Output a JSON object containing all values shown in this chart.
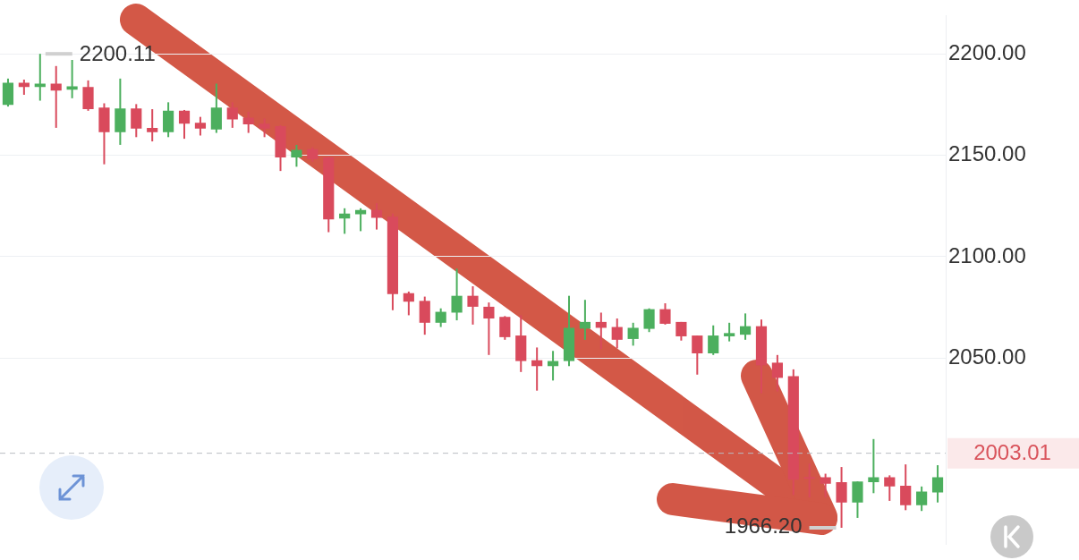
{
  "chart_data": {
    "type": "candlestick",
    "categories": [
      null,
      null,
      null,
      null,
      null,
      null,
      null,
      null,
      null,
      null,
      null,
      null,
      null,
      null,
      null,
      null,
      null,
      null,
      null,
      null,
      null,
      null,
      null,
      null,
      null,
      null,
      null,
      null,
      null,
      null,
      null,
      null,
      null,
      null,
      null,
      null,
      null,
      null,
      null,
      null,
      null,
      null,
      null,
      null,
      null,
      null,
      null,
      null,
      null,
      null,
      null,
      null,
      null,
      null,
      null,
      null,
      null,
      null,
      null
    ],
    "ohlc": [
      [
        2174.9,
        2187.9,
        2174.1,
        2185.8
      ],
      [
        2185.8,
        2187.4,
        2179.9,
        2183.7
      ],
      [
        2183.7,
        2200.11,
        2177.0,
        2185.4
      ],
      [
        2185.4,
        2194.1,
        2163.6,
        2182.0
      ],
      [
        2182.4,
        2197.1,
        2178.2,
        2184.1
      ],
      [
        2183.7,
        2187.0,
        2172.0,
        2172.8
      ],
      [
        2173.6,
        2175.7,
        2145.6,
        2161.5
      ],
      [
        2161.5,
        2187.9,
        2155.2,
        2173.2
      ],
      [
        2173.2,
        2175.3,
        2159.0,
        2163.2
      ],
      [
        2163.6,
        2172.8,
        2156.9,
        2161.5
      ],
      [
        2161.5,
        2176.2,
        2159.0,
        2172.0
      ],
      [
        2172.0,
        2172.4,
        2158.2,
        2165.7
      ],
      [
        2166.1,
        2169.0,
        2159.8,
        2163.2
      ],
      [
        2162.8,
        2185.4,
        2161.1,
        2173.6
      ],
      [
        2173.6,
        2176.2,
        2163.6,
        2167.8
      ],
      [
        2168.6,
        2171.5,
        2161.1,
        2165.3
      ],
      [
        2165.7,
        2168.2,
        2159.0,
        2163.2
      ],
      [
        2164.4,
        2164.9,
        2142.3,
        2149.0
      ],
      [
        2149.0,
        2155.2,
        2144.4,
        2152.7
      ],
      [
        2153.1,
        2154.0,
        2146.9,
        2148.1
      ],
      [
        2149.0,
        2149.4,
        2112.1,
        2118.4
      ],
      [
        2118.8,
        2123.9,
        2111.3,
        2121.3
      ],
      [
        2120.9,
        2123.9,
        2112.6,
        2123.0
      ],
      [
        2123.0,
        2126.4,
        2113.4,
        2119.2
      ],
      [
        2119.7,
        2121.3,
        2073.6,
        2081.6
      ],
      [
        2082.0,
        2082.8,
        2071.1,
        2077.8
      ],
      [
        2078.2,
        2080.3,
        2061.5,
        2067.4
      ],
      [
        2067.4,
        2074.5,
        2065.3,
        2072.8
      ],
      [
        2072.4,
        2094.1,
        2068.6,
        2080.7
      ],
      [
        2080.7,
        2085.4,
        2066.5,
        2075.3
      ],
      [
        2075.3,
        2077.4,
        2051.5,
        2069.5
      ],
      [
        2070.3,
        2070.7,
        2059.0,
        2060.3
      ],
      [
        2061.1,
        2071.1,
        2043.1,
        2048.5
      ],
      [
        2048.9,
        2055.2,
        2033.9,
        2046.0
      ],
      [
        2046.0,
        2053.5,
        2038.9,
        2048.5
      ],
      [
        2048.5,
        2080.7,
        2046.0,
        2064.9
      ],
      [
        2064.5,
        2078.7,
        2059.0,
        2067.8
      ],
      [
        2067.8,
        2072.4,
        2054.4,
        2064.9
      ],
      [
        2065.3,
        2069.5,
        2054.8,
        2059.0
      ],
      [
        2059.4,
        2067.4,
        2056.1,
        2064.9
      ],
      [
        2064.4,
        2074.5,
        2062.8,
        2074.1
      ],
      [
        2074.1,
        2077.0,
        2066.5,
        2066.9
      ],
      [
        2067.8,
        2067.8,
        2058.6,
        2060.7
      ],
      [
        2061.1,
        2061.1,
        2041.8,
        2052.3
      ],
      [
        2052.3,
        2066.1,
        2051.5,
        2061.1
      ],
      [
        2060.7,
        2067.4,
        2058.2,
        2062.3
      ],
      [
        2061.5,
        2072.0,
        2059.0,
        2065.7
      ],
      [
        2065.7,
        2069.0,
        2032.6,
        2046.4
      ],
      [
        2047.7,
        2051.5,
        2033.5,
        2040.2
      ],
      [
        2041.0,
        2044.4,
        1982.4,
        1989.9
      ],
      [
        1991.2,
        1997.9,
        1981.2,
        1990.4
      ],
      [
        1991.2,
        1992.9,
        1981.2,
        1987.9
      ],
      [
        1988.7,
        1996.2,
        1966.2,
        1978.7
      ],
      [
        1978.7,
        1989.1,
        1971.1,
        1989.1
      ],
      [
        1988.7,
        2010.0,
        1983.3,
        1991.2
      ],
      [
        1991.2,
        1992.1,
        1979.5,
        1986.6
      ],
      [
        1987.0,
        1997.5,
        1974.9,
        1977.4
      ],
      [
        1977.4,
        1986.6,
        1974.5,
        1984.1
      ],
      [
        1983.7,
        1997.1,
        1978.7,
        1991.2
      ]
    ],
    "colors": [
      "#4caf5e",
      "#d94a5c",
      "#4caf5e",
      "#d94a5c",
      "#4caf5e",
      "#d94a5c",
      "#d94a5c",
      "#4caf5e",
      "#d94a5c",
      "#d94a5c",
      "#4caf5e",
      "#d94a5c",
      "#d94a5c",
      "#4caf5e",
      "#d94a5c",
      "#d94a5c",
      "#d94a5c",
      "#d94a5c",
      "#4caf5e",
      "#d94a5c",
      "#d94a5c",
      "#4caf5e",
      "#4caf5e",
      "#d94a5c",
      "#d94a5c",
      "#d94a5c",
      "#d94a5c",
      "#4caf5e",
      "#4caf5e",
      "#d94a5c",
      "#d94a5c",
      "#d94a5c",
      "#d94a5c",
      "#d94a5c",
      "#4caf5e",
      "#4caf5e",
      "#4caf5e",
      "#d94a5c",
      "#d94a5c",
      "#4caf5e",
      "#4caf5e",
      "#d94a5c",
      "#d94a5c",
      "#d94a5c",
      "#4caf5e",
      "#4caf5e",
      "#4caf5e",
      "#d94a5c",
      "#d94a5c",
      "#d94a5c",
      "#d94a5c",
      "#d94a5c",
      "#d94a5c",
      "#4caf5e",
      "#4caf5e",
      "#d94a5c",
      "#d94a5c",
      "#4caf5e",
      "#4caf5e"
    ],
    "ylim": [
      1958,
      2219
    ],
    "yticks": [
      {
        "value": 2050,
        "label": "2050.00"
      },
      {
        "value": 2100,
        "label": "2100.00"
      },
      {
        "value": 2150,
        "label": "2150.00"
      },
      {
        "value": 2200,
        "label": "2200.00"
      }
    ],
    "grid": "y",
    "tick_labels": "y",
    "legend": false,
    "ref_lines": [
      {
        "axis": "y",
        "value": 2003.01,
        "label": "2003.01",
        "color": "#b8bcc2",
        "line_style": "dashed"
      }
    ],
    "annotations": [
      "2200.11",
      "1966.20"
    ]
  }
}
